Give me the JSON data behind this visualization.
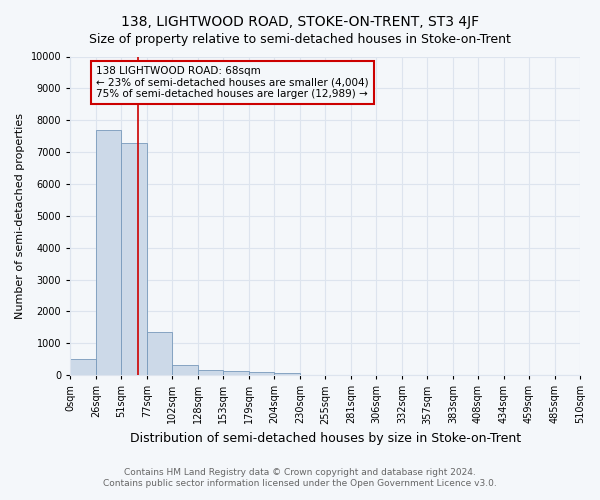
{
  "title": "138, LIGHTWOOD ROAD, STOKE-ON-TRENT, ST3 4JF",
  "subtitle": "Size of property relative to semi-detached houses in Stoke-on-Trent",
  "xlabel": "Distribution of semi-detached houses by size in Stoke-on-Trent",
  "ylabel": "Number of semi-detached properties",
  "footer_line1": "Contains HM Land Registry data © Crown copyright and database right 2024.",
  "footer_line2": "Contains public sector information licensed under the Open Government Licence v3.0.",
  "bin_edges": [
    0,
    26,
    51,
    77,
    102,
    128,
    153,
    179,
    204,
    230,
    255,
    281,
    306,
    332,
    357,
    383,
    408,
    434,
    459,
    485,
    510
  ],
  "bar_heights": [
    500,
    7700,
    7300,
    1350,
    320,
    170,
    130,
    100,
    80,
    10,
    5,
    3,
    2,
    2,
    1,
    1,
    1,
    1,
    1,
    1
  ],
  "bar_color": "#ccd9e8",
  "bar_edge_color": "#7799bb",
  "property_sqm": 68,
  "red_line_color": "#cc0000",
  "annotation_text_line1": "138 LIGHTWOOD ROAD: 68sqm",
  "annotation_text_line2": "← 23% of semi-detached houses are smaller (4,004)",
  "annotation_text_line3": "75% of semi-detached houses are larger (12,989) →",
  "annotation_box_color": "#cc0000",
  "ylim": [
    0,
    10000
  ],
  "yticks": [
    0,
    1000,
    2000,
    3000,
    4000,
    5000,
    6000,
    7000,
    8000,
    9000,
    10000
  ],
  "bg_color": "#f4f7fa",
  "grid_color": "#dde4ee",
  "title_fontsize": 10,
  "subtitle_fontsize": 9,
  "xlabel_fontsize": 9,
  "ylabel_fontsize": 8,
  "tick_fontsize": 7,
  "annot_fontsize": 7.5,
  "footer_fontsize": 6.5,
  "footer_color": "#666666"
}
